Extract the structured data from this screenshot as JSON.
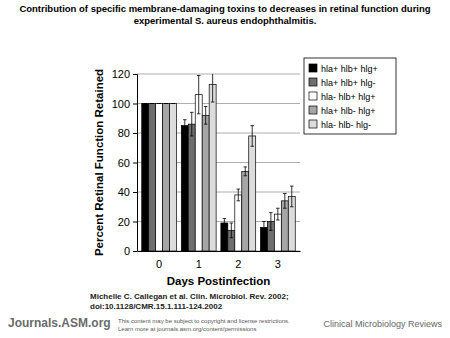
{
  "chart_data": {
    "type": "bar",
    "title": "Contribution of specific membrane-damaging toxins to decreases in retinal function during experimental S. aureus endophthalmitis.",
    "x_label": "Days Postinfection",
    "y_label": "Percent Retinal Function Retained",
    "categories": [
      "0",
      "1",
      "2",
      "3"
    ],
    "series": [
      {
        "name": "hla+ hlb+ hlg+",
        "color": "#000000",
        "values": [
          100,
          85,
          19,
          16
        ],
        "errors": [
          0,
          4,
          3,
          4
        ]
      },
      {
        "name": "hla+ hlb+ hlg-",
        "color": "#6e6e6e",
        "values": [
          100,
          86,
          14,
          20
        ],
        "errors": [
          0,
          8,
          5,
          6
        ]
      },
      {
        "name": "hla- hlb+ hlg+",
        "color": "#ffffff",
        "values": [
          100,
          106,
          38,
          25
        ],
        "errors": [
          0,
          13,
          4,
          4
        ]
      },
      {
        "name": "hla+ hlb- hlg+",
        "color": "#a6a6a6",
        "values": [
          100,
          92,
          54,
          34
        ],
        "errors": [
          0,
          6,
          3,
          5
        ]
      },
      {
        "name": "hla- hlb- hlg-",
        "color": "#dcdcdc",
        "values": [
          100,
          113,
          78,
          37
        ],
        "errors": [
          0,
          12,
          7,
          7
        ]
      }
    ],
    "ylim": [
      0,
      120
    ],
    "yticks": [
      0,
      20,
      40,
      60,
      80,
      100,
      120
    ],
    "grid": true,
    "legend": "top-right",
    "annotations": [
      "Michelle C. Callegan et al. Clin. Microbiol. Rev. 2002;",
      "doi:10.1128/CMR.15.1.111-124.2002",
      "Journals.ASM.org",
      "This content may be subject to copyright and license restrictions.",
      "Learn more at journals.asm.org/content/permissions",
      "Clinical Microbiology Reviews"
    ]
  }
}
